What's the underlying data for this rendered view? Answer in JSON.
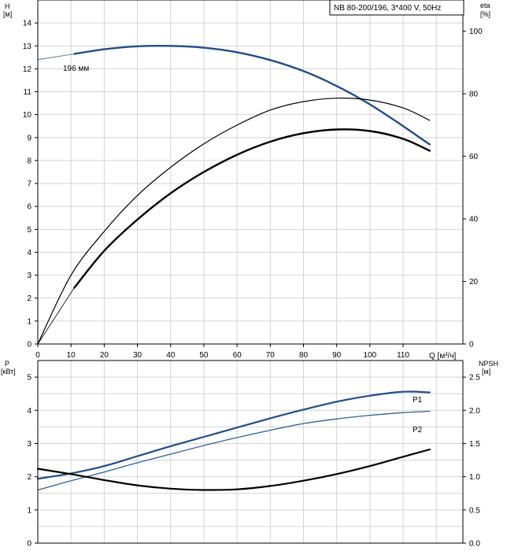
{
  "chart_data": [
    {
      "type": "line",
      "title": "NB 80-200/196, 3*400 V, 50Hz",
      "xlabel": "Q [м³/ч]",
      "ylabel": "H [м]",
      "ylabel_name": "H",
      "ylabel_unit": "[м]",
      "y2label_name": "eta",
      "y2label_unit": "[%]",
      "xlim": [
        0,
        128
      ],
      "ylim": [
        0,
        15
      ],
      "y2lim": [
        0,
        110
      ],
      "x_ticks": [
        0,
        10,
        20,
        30,
        40,
        50,
        60,
        70,
        80,
        90,
        100,
        110
      ],
      "x_ticks_label": "Q [м³/ч]",
      "y_ticks": [
        0,
        1,
        2,
        3,
        4,
        5,
        6,
        7,
        8,
        9,
        10,
        11,
        12,
        13,
        14
      ],
      "y2_ticks": [
        0,
        20,
        40,
        60,
        80,
        100
      ],
      "grid": true,
      "annotation": "196 мм",
      "series": [
        {
          "axis": "left",
          "style": "head-extension",
          "x": [
            0,
            11
          ],
          "y": [
            12.4,
            12.65
          ]
        },
        {
          "axis": "left",
          "style": "head",
          "x": [
            11,
            20,
            30,
            40,
            50,
            60,
            70,
            80,
            90,
            100,
            110,
            118
          ],
          "y": [
            12.65,
            12.85,
            12.98,
            13.0,
            12.92,
            12.72,
            12.38,
            11.9,
            11.25,
            10.45,
            9.5,
            8.7
          ]
        },
        {
          "axis": "right",
          "style": "thin",
          "x": [
            0,
            10,
            20,
            30,
            40,
            50,
            60,
            70,
            80,
            90,
            100,
            110,
            118
          ],
          "y": [
            0,
            22,
            36,
            47.5,
            56.5,
            64,
            70,
            74.8,
            77.5,
            78.6,
            78,
            75.5,
            71.5
          ]
        },
        {
          "axis": "right",
          "style": "thick",
          "x": [
            11,
            20,
            30,
            40,
            50,
            60,
            70,
            80,
            90,
            100,
            110,
            118
          ],
          "y": [
            18,
            29.8,
            39.8,
            48.2,
            55,
            60.5,
            64.7,
            67.4,
            68.6,
            68.1,
            65.6,
            61.8
          ]
        },
        {
          "axis": "right",
          "style": "origin-thin",
          "x": [
            0,
            11
          ],
          "y": [
            0,
            18
          ]
        }
      ]
    },
    {
      "type": "line",
      "xlabel": "",
      "ylabel": "P [кВт]",
      "ylabel_name": "P",
      "ylabel_unit": "[кВт]",
      "y2label_name": "NPSH",
      "y2label_unit": "[м]",
      "xlim": [
        0,
        128
      ],
      "ylim": [
        0,
        5.5
      ],
      "y2lim": [
        0,
        2.75
      ],
      "y_ticks": [
        0,
        1,
        2,
        3,
        4,
        5
      ],
      "y2_ticks": [
        "0.0",
        "0.5",
        "1.0",
        "1.5",
        "2.0",
        "2.5"
      ],
      "grid": true,
      "series": [
        {
          "name": "P1",
          "axis": "left",
          "style": "p1",
          "x": [
            0,
            10,
            20,
            30,
            40,
            50,
            60,
            70,
            80,
            90,
            100,
            110,
            118
          ],
          "y": [
            1.94,
            2.1,
            2.32,
            2.62,
            2.92,
            3.2,
            3.48,
            3.76,
            4.02,
            4.26,
            4.44,
            4.56,
            4.54
          ]
        },
        {
          "name": "P2",
          "axis": "left",
          "style": "p2",
          "x": [
            0,
            10,
            20,
            30,
            40,
            50,
            60,
            70,
            80,
            90,
            100,
            110,
            118
          ],
          "y": [
            1.6,
            1.88,
            2.14,
            2.42,
            2.68,
            2.94,
            3.18,
            3.4,
            3.6,
            3.74,
            3.85,
            3.93,
            3.97
          ]
        },
        {
          "axis": "right",
          "style": "npsh",
          "x": [
            0,
            10,
            20,
            30,
            40,
            50,
            60,
            70,
            80,
            90,
            100,
            110,
            118
          ],
          "y": [
            1.12,
            1.04,
            0.95,
            0.87,
            0.82,
            0.8,
            0.81,
            0.86,
            0.94,
            1.04,
            1.16,
            1.3,
            1.41
          ]
        }
      ]
    }
  ],
  "colors": {
    "blue": "#1f4e8c",
    "blue_light": "#2f6299",
    "black": "#000000"
  }
}
